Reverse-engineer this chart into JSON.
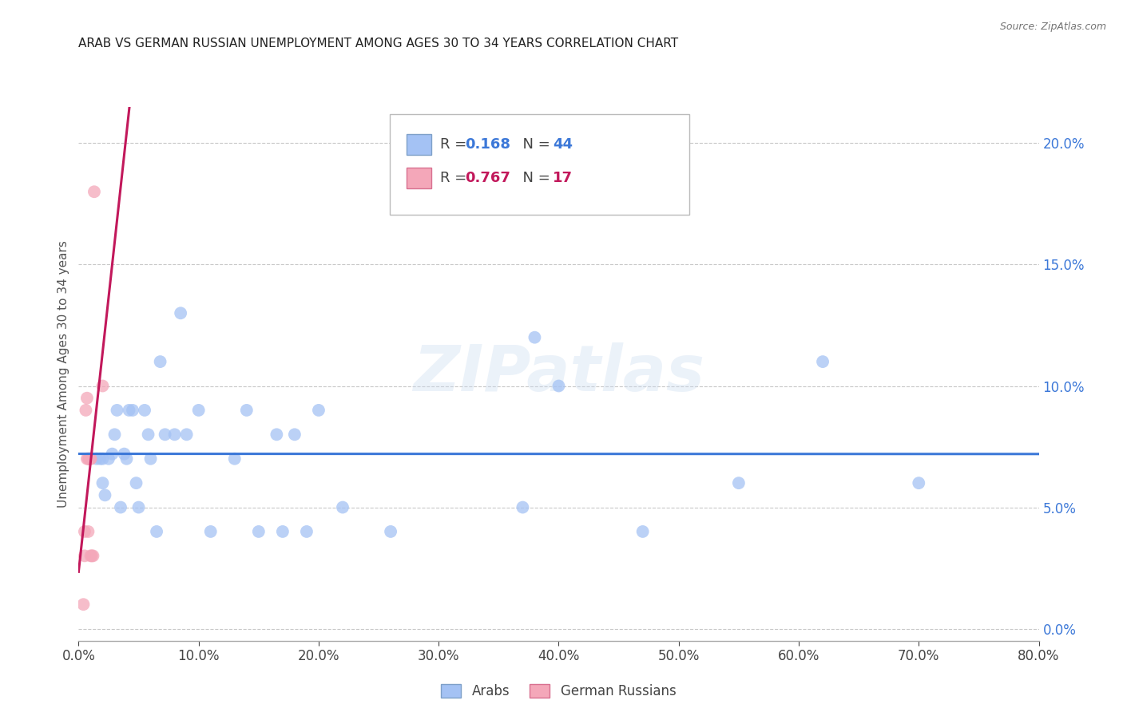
{
  "title": "ARAB VS GERMAN RUSSIAN UNEMPLOYMENT AMONG AGES 30 TO 34 YEARS CORRELATION CHART",
  "source": "Source: ZipAtlas.com",
  "ylabel": "Unemployment Among Ages 30 to 34 years",
  "watermark": "ZIPatlas",
  "arab_R": 0.168,
  "arab_N": 44,
  "german_russian_R": 0.767,
  "german_russian_N": 17,
  "xlim": [
    0.0,
    0.8
  ],
  "ylim": [
    -0.005,
    0.215
  ],
  "xticks": [
    0.0,
    0.1,
    0.2,
    0.3,
    0.4,
    0.5,
    0.6,
    0.7,
    0.8
  ],
  "yticks": [
    0.0,
    0.05,
    0.1,
    0.15,
    0.2
  ],
  "arab_color": "#a4c2f4",
  "german_russian_color": "#f4a7b9",
  "arab_line_color": "#3c78d8",
  "german_russian_line_color": "#c2185b",
  "title_color": "#212121",
  "source_color": "#757575",
  "grid_color": "#c8c8c8",
  "arab_x": [
    0.015,
    0.018,
    0.02,
    0.02,
    0.022,
    0.025,
    0.028,
    0.03,
    0.032,
    0.035,
    0.038,
    0.04,
    0.042,
    0.045,
    0.048,
    0.05,
    0.055,
    0.058,
    0.06,
    0.065,
    0.068,
    0.072,
    0.08,
    0.085,
    0.09,
    0.1,
    0.11,
    0.13,
    0.14,
    0.15,
    0.165,
    0.17,
    0.18,
    0.19,
    0.2,
    0.22,
    0.26,
    0.37,
    0.38,
    0.4,
    0.47,
    0.55,
    0.62,
    0.7
  ],
  "arab_y": [
    0.07,
    0.07,
    0.07,
    0.06,
    0.055,
    0.07,
    0.072,
    0.08,
    0.09,
    0.05,
    0.072,
    0.07,
    0.09,
    0.09,
    0.06,
    0.05,
    0.09,
    0.08,
    0.07,
    0.04,
    0.11,
    0.08,
    0.08,
    0.13,
    0.08,
    0.09,
    0.04,
    0.07,
    0.09,
    0.04,
    0.08,
    0.04,
    0.08,
    0.04,
    0.09,
    0.05,
    0.04,
    0.05,
    0.12,
    0.1,
    0.04,
    0.06,
    0.11,
    0.06
  ],
  "german_russian_x": [
    0.004,
    0.005,
    0.005,
    0.006,
    0.007,
    0.007,
    0.008,
    0.008,
    0.009,
    0.009,
    0.01,
    0.01,
    0.01,
    0.011,
    0.012,
    0.013,
    0.02
  ],
  "german_russian_y": [
    0.01,
    0.03,
    0.04,
    0.09,
    0.07,
    0.095,
    0.07,
    0.04,
    0.07,
    0.07,
    0.03,
    0.07,
    0.07,
    0.03,
    0.03,
    0.18,
    0.1
  ]
}
